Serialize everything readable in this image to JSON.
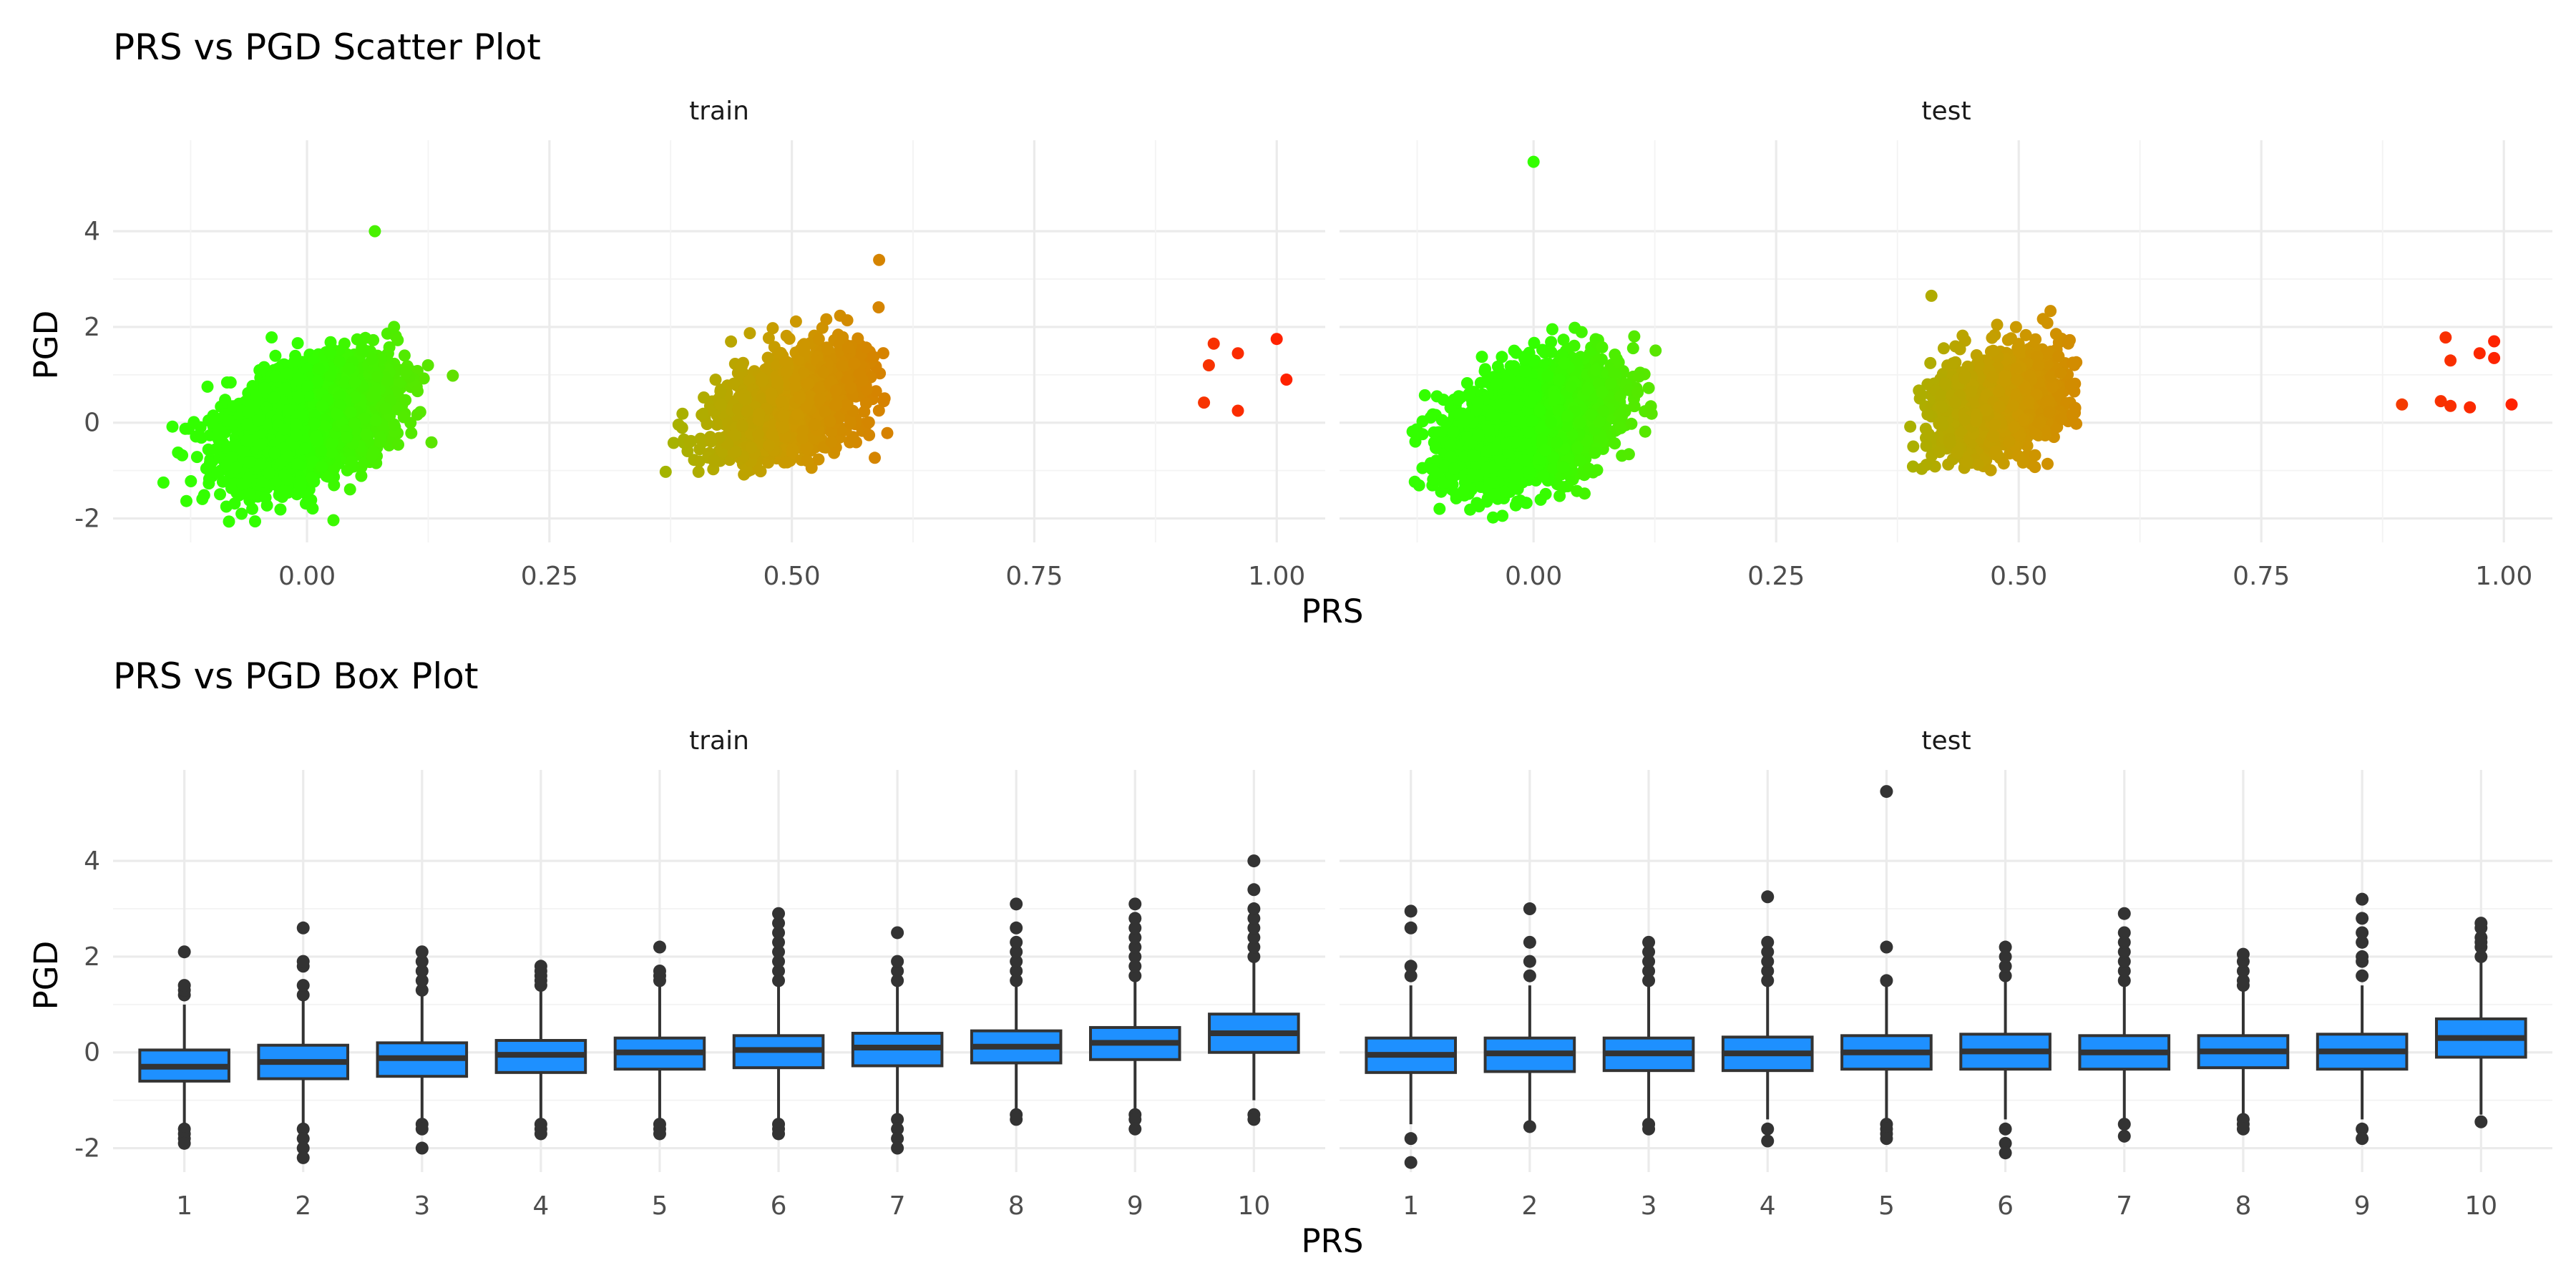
{
  "chart_data": [
    {
      "type": "scatter",
      "title": "PRS vs PGD Scatter Plot",
      "xlabel": "PRS",
      "ylabel": "PGD",
      "facets": [
        "train",
        "test"
      ],
      "xlim": [
        -0.2,
        1.05
      ],
      "ylim": [
        -2.5,
        5.9
      ],
      "x_ticks": [
        0.0,
        0.25,
        0.5,
        0.75,
        1.0
      ],
      "x_tick_labels": [
        "0.00",
        "0.25",
        "0.50",
        "0.75",
        "1.00"
      ],
      "y_ticks": [
        -2,
        0,
        2,
        4
      ],
      "y_tick_labels": [
        "-2",
        "0",
        "2",
        "4"
      ],
      "grid": true,
      "color_scale": [
        "#33ff00",
        "#cc9900",
        "#ff2200"
      ],
      "clusters": [
        {
          "facet": "train",
          "center_x": 0.0,
          "sd_x": 0.04,
          "range_x": [
            -0.15,
            0.17
          ],
          "center_y": 0.0,
          "range_y": [
            -2.3,
            4.0
          ],
          "density": "high"
        },
        {
          "facet": "train",
          "center_x": 0.5,
          "sd_x": 0.04,
          "range_x": [
            0.36,
            0.6
          ],
          "center_y": 0.4,
          "range_y": [
            -1.1,
            3.4
          ],
          "density": "medium"
        },
        {
          "facet": "test",
          "center_x": 0.0,
          "sd_x": 0.04,
          "range_x": [
            -0.14,
            0.13
          ],
          "center_y": 0.0,
          "range_y": [
            -2.3,
            5.5
          ],
          "density": "high"
        },
        {
          "facet": "test",
          "center_x": 0.48,
          "sd_x": 0.035,
          "range_x": [
            0.38,
            0.56
          ],
          "center_y": 0.4,
          "range_y": [
            -1.0,
            2.7
          ],
          "density": "medium"
        }
      ],
      "points": [
        {
          "facet": "train",
          "x": 0.935,
          "y": 1.65
        },
        {
          "facet": "train",
          "x": 0.96,
          "y": 1.45
        },
        {
          "facet": "train",
          "x": 1.0,
          "y": 1.75
        },
        {
          "facet": "train",
          "x": 0.93,
          "y": 1.2
        },
        {
          "facet": "train",
          "x": 1.01,
          "y": 0.9
        },
        {
          "facet": "train",
          "x": 0.925,
          "y": 0.42
        },
        {
          "facet": "train",
          "x": 0.96,
          "y": 0.25
        },
        {
          "facet": "train",
          "x": 0.07,
          "y": 4.0
        },
        {
          "facet": "train",
          "x": 0.59,
          "y": 3.4
        },
        {
          "facet": "test",
          "x": 0.0,
          "y": 5.45
        },
        {
          "facet": "test",
          "x": 0.94,
          "y": 1.78
        },
        {
          "facet": "test",
          "x": 0.99,
          "y": 1.7
        },
        {
          "facet": "test",
          "x": 0.975,
          "y": 1.45
        },
        {
          "facet": "test",
          "x": 0.99,
          "y": 1.35
        },
        {
          "facet": "test",
          "x": 0.945,
          "y": 1.3
        },
        {
          "facet": "test",
          "x": 0.895,
          "y": 0.38
        },
        {
          "facet": "test",
          "x": 0.935,
          "y": 0.45
        },
        {
          "facet": "test",
          "x": 0.945,
          "y": 0.35
        },
        {
          "facet": "test",
          "x": 0.965,
          "y": 0.32
        },
        {
          "facet": "test",
          "x": 1.008,
          "y": 0.38
        },
        {
          "facet": "test",
          "x": 0.41,
          "y": 2.65
        }
      ]
    },
    {
      "type": "box",
      "title": "PRS vs PGD Box Plot",
      "xlabel": "PRS",
      "ylabel": "PGD",
      "facets": [
        "train",
        "test"
      ],
      "categories": [
        "1",
        "2",
        "3",
        "4",
        "5",
        "6",
        "7",
        "8",
        "9",
        "10"
      ],
      "ylim": [
        -2.5,
        5.9
      ],
      "y_ticks": [
        -2,
        0,
        2,
        4
      ],
      "y_tick_labels": [
        "-2",
        "0",
        "2",
        "4"
      ],
      "grid": true,
      "fill_color": "#1e90ff",
      "series": [
        {
          "name": "train",
          "boxes": [
            {
              "q1": -0.6,
              "median": -0.3,
              "q3": 0.05,
              "low": -1.5,
              "high": 1.0,
              "outliers": [
                -1.6,
                -1.7,
                -1.8,
                -1.9,
                1.2,
                1.3,
                1.4,
                2.1
              ]
            },
            {
              "q1": -0.55,
              "median": -0.2,
              "q3": 0.15,
              "low": -1.5,
              "high": 1.1,
              "outliers": [
                -1.6,
                -1.8,
                -2.0,
                -2.2,
                1.2,
                1.4,
                1.8,
                1.9,
                2.6
              ]
            },
            {
              "q1": -0.5,
              "median": -0.12,
              "q3": 0.2,
              "low": -1.4,
              "high": 1.2,
              "outliers": [
                -1.5,
                -1.6,
                -2.0,
                1.3,
                1.5,
                1.7,
                1.9,
                2.1
              ]
            },
            {
              "q1": -0.42,
              "median": -0.05,
              "q3": 0.25,
              "low": -1.4,
              "high": 1.3,
              "outliers": [
                -1.5,
                -1.6,
                -1.7,
                1.4,
                1.5,
                1.6,
                1.7,
                1.8
              ]
            },
            {
              "q1": -0.35,
              "median": 0.0,
              "q3": 0.3,
              "low": -1.4,
              "high": 1.4,
              "outliers": [
                -1.5,
                -1.6,
                -1.7,
                1.5,
                1.6,
                1.7,
                2.2
              ]
            },
            {
              "q1": -0.32,
              "median": 0.05,
              "q3": 0.35,
              "low": -1.4,
              "high": 1.4,
              "outliers": [
                -1.5,
                -1.6,
                -1.7,
                1.5,
                1.7,
                1.9,
                2.1,
                2.3,
                2.5,
                2.7,
                2.9
              ]
            },
            {
              "q1": -0.28,
              "median": 0.1,
              "q3": 0.4,
              "low": -1.3,
              "high": 1.4,
              "outliers": [
                -1.4,
                -1.6,
                -1.8,
                -2.0,
                1.5,
                1.7,
                1.9,
                2.5
              ]
            },
            {
              "q1": -0.22,
              "median": 0.12,
              "q3": 0.45,
              "low": -1.2,
              "high": 1.4,
              "outliers": [
                -1.3,
                -1.4,
                1.5,
                1.7,
                1.9,
                2.1,
                2.3,
                2.6,
                3.1
              ]
            },
            {
              "q1": -0.15,
              "median": 0.2,
              "q3": 0.52,
              "low": -1.2,
              "high": 1.5,
              "outliers": [
                -1.3,
                -1.4,
                -1.6,
                1.6,
                1.8,
                2.0,
                2.2,
                2.4,
                2.6,
                2.8,
                3.1
              ]
            },
            {
              "q1": 0.0,
              "median": 0.4,
              "q3": 0.8,
              "low": -1.0,
              "high": 1.9,
              "outliers": [
                -1.3,
                -1.4,
                2.0,
                2.2,
                2.4,
                2.6,
                2.8,
                3.0,
                3.4,
                4.0
              ]
            }
          ]
        },
        {
          "name": "test",
          "boxes": [
            {
              "q1": -0.42,
              "median": -0.05,
              "q3": 0.3,
              "low": -1.5,
              "high": 1.4,
              "outliers": [
                -1.8,
                -2.3,
                1.6,
                1.8,
                2.6,
                2.95
              ]
            },
            {
              "q1": -0.4,
              "median": -0.02,
              "q3": 0.3,
              "low": -1.5,
              "high": 1.4,
              "outliers": [
                -1.55,
                1.6,
                1.9,
                2.3,
                3.0
              ]
            },
            {
              "q1": -0.38,
              "median": -0.02,
              "q3": 0.3,
              "low": -1.4,
              "high": 1.4,
              "outliers": [
                -1.5,
                -1.6,
                1.5,
                1.7,
                1.9,
                2.1,
                2.3
              ]
            },
            {
              "q1": -0.38,
              "median": -0.02,
              "q3": 0.32,
              "low": -1.4,
              "high": 1.4,
              "outliers": [
                -1.6,
                -1.85,
                1.5,
                1.7,
                1.9,
                2.1,
                2.3,
                3.25
              ]
            },
            {
              "q1": -0.35,
              "median": 0.0,
              "q3": 0.35,
              "low": -1.4,
              "high": 1.4,
              "outliers": [
                -1.5,
                -1.6,
                -1.7,
                -1.8,
                1.5,
                2.2,
                5.45
              ]
            },
            {
              "q1": -0.35,
              "median": 0.02,
              "q3": 0.38,
              "low": -1.4,
              "high": 1.5,
              "outliers": [
                -1.6,
                -1.9,
                -2.1,
                1.6,
                1.8,
                2.0,
                2.2
              ]
            },
            {
              "q1": -0.35,
              "median": 0.0,
              "q3": 0.35,
              "low": -1.4,
              "high": 1.4,
              "outliers": [
                -1.5,
                -1.75,
                1.5,
                1.7,
                1.9,
                2.1,
                2.3,
                2.5,
                2.9
              ]
            },
            {
              "q1": -0.32,
              "median": 0.02,
              "q3": 0.35,
              "low": -1.3,
              "high": 1.3,
              "outliers": [
                -1.4,
                -1.5,
                -1.6,
                1.4,
                1.5,
                1.7,
                1.9,
                2.05
              ]
            },
            {
              "q1": -0.35,
              "median": 0.02,
              "q3": 0.38,
              "low": -1.4,
              "high": 1.4,
              "outliers": [
                -1.6,
                -1.8,
                1.6,
                1.9,
                2.0,
                2.3,
                2.5,
                2.8,
                3.2
              ]
            },
            {
              "q1": -0.1,
              "median": 0.3,
              "q3": 0.7,
              "low": -1.3,
              "high": 1.9,
              "outliers": [
                -1.45,
                2.0,
                2.2,
                2.3,
                2.4,
                2.6,
                2.7
              ]
            }
          ]
        }
      ]
    }
  ]
}
